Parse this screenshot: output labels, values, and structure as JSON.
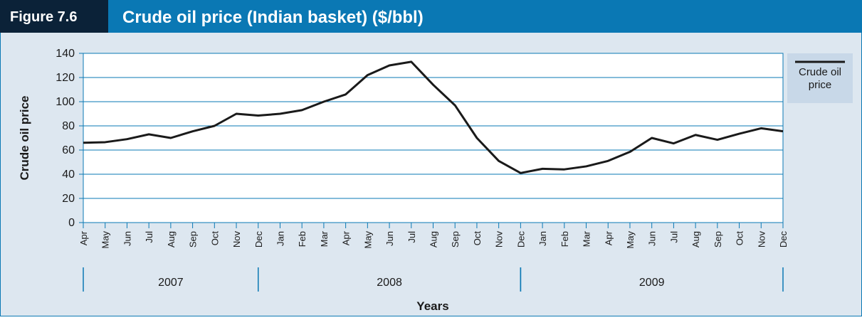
{
  "chart_data": {
    "type": "line",
    "figure_label": "Figure 7.6",
    "title": "Crude oil price (Indian basket) ($/bbl)",
    "y_label": "Crude oil price",
    "x_label": "Years",
    "groups": [
      {
        "label": "2007",
        "categories": [
          "Apr",
          "May",
          "Jun",
          "Jul",
          "Aug",
          "Sep",
          "Oct",
          "Nov",
          "Dec"
        ]
      },
      {
        "label": "2008",
        "categories": [
          "Jan",
          "Feb",
          "Mar",
          "Apr",
          "May",
          "Jun",
          "Jul",
          "Aug",
          "Sep",
          "Oct",
          "Nov",
          "Dec"
        ]
      },
      {
        "label": "2009",
        "categories": [
          "Jan",
          "Feb",
          "Mar",
          "Apr",
          "May",
          "Jun",
          "Jul",
          "Aug",
          "Sep",
          "Oct",
          "Nov",
          "Dec"
        ]
      }
    ],
    "series": [
      {
        "name": "Crude oil price",
        "color": "#1a1a1a",
        "values": [
          66,
          66.5,
          69,
          73,
          70,
          75.5,
          80,
          90,
          88.5,
          90,
          93,
          100,
          106,
          122,
          130,
          133,
          114,
          97,
          70,
          51,
          41,
          44.5,
          44,
          46.5,
          51,
          58.5,
          70,
          65.5,
          72.5,
          68.5,
          73.5,
          78,
          75.5
        ]
      }
    ],
    "ylim": [
      0,
      140
    ],
    "yticks": [
      0,
      20,
      40,
      60,
      80,
      100,
      120,
      140
    ],
    "grid": true
  }
}
